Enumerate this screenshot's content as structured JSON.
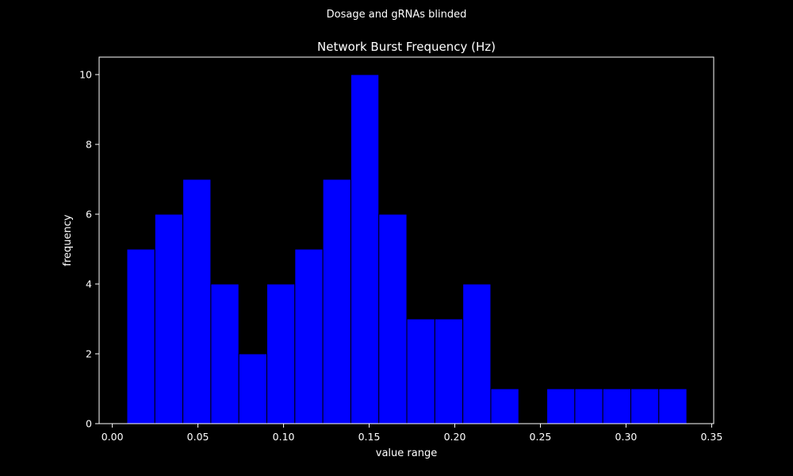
{
  "figure": {
    "suptitle": "Dosage and gRNAs blinded"
  },
  "colors": {
    "background": "#000000",
    "bar_fill": "#0000ff",
    "bar_edge": "#000000",
    "axis": "#ffffff",
    "text": "#ffffff"
  },
  "chart_data": {
    "type": "bar",
    "subtype": "histogram",
    "title": "Network Burst Frequency (Hz)",
    "xlabel": "value range",
    "ylabel": "frequency",
    "xlim": [
      -0.0077,
      0.3512
    ],
    "ylim": [
      0,
      10.5
    ],
    "grid": false,
    "x_ticks": [
      0.0,
      0.05,
      0.1,
      0.15,
      0.2,
      0.25,
      0.3,
      0.35
    ],
    "x_tick_labels": [
      "0.00",
      "0.05",
      "0.10",
      "0.15",
      "0.20",
      "0.25",
      "0.30",
      "0.35"
    ],
    "y_ticks": [
      0,
      2,
      4,
      6,
      8,
      10
    ],
    "y_tick_labels": [
      "0",
      "2",
      "4",
      "6",
      "8",
      "10"
    ],
    "bin_start": 0.0085,
    "bin_width": 0.01635,
    "values": [
      5,
      6,
      7,
      4,
      2,
      4,
      5,
      7,
      10,
      6,
      3,
      3,
      4,
      1,
      0,
      1,
      1,
      1,
      1,
      1
    ]
  }
}
